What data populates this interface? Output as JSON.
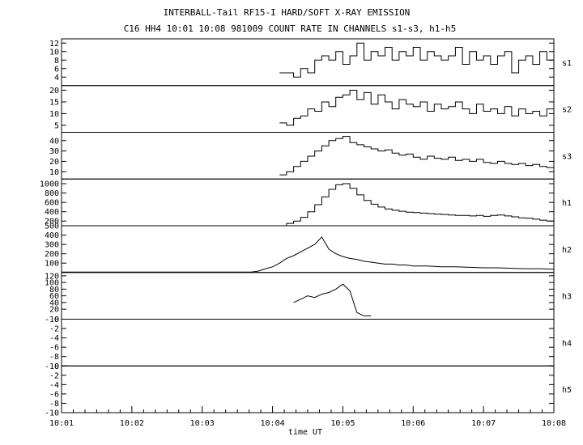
{
  "chart_data": {
    "type": "line",
    "title": "INTERBALL-Tail RF15-I HARD/SOFT X-RAY EMISSION",
    "subtitle": "C16 HH4 10:01 10:08 981009  COUNT RATE IN CHANNELS s1-s3, h1-h5",
    "xlabel": "time UT",
    "x_ticks": [
      "10:01",
      "10:02",
      "10:03",
      "10:04",
      "10:05",
      "10:06",
      "10:07",
      "10:08"
    ],
    "xlim": [
      0,
      7
    ],
    "x_unit_note": "minutes after 10:01 UT",
    "grid": false,
    "panels": [
      {
        "name": "s1",
        "ylim": [
          2,
          13
        ],
        "yticks": [
          4,
          6,
          8,
          10,
          12
        ],
        "series": {
          "type": "step",
          "x": [
            3.1,
            3.2,
            3.3,
            3.4,
            3.5,
            3.6,
            3.7,
            3.8,
            3.9,
            4.0,
            4.1,
            4.2,
            4.3,
            4.4,
            4.5,
            4.6,
            4.7,
            4.8,
            4.9,
            5.0,
            5.1,
            5.2,
            5.3,
            5.4,
            5.5,
            5.6,
            5.7,
            5.8,
            5.9,
            6.0,
            6.1,
            6.2,
            6.3,
            6.4,
            6.5,
            6.6,
            6.7,
            6.8,
            6.9,
            7.0
          ],
          "y": [
            5,
            5,
            4,
            6,
            5,
            8,
            9,
            8,
            10,
            7,
            9,
            12,
            8,
            10,
            9,
            11,
            8,
            10,
            9,
            11,
            8,
            10,
            9,
            8,
            9,
            11,
            7,
            10,
            8,
            9,
            7,
            9,
            10,
            5,
            8,
            9,
            7,
            10,
            8,
            5
          ]
        }
      },
      {
        "name": "s2",
        "ylim": [
          2,
          22
        ],
        "yticks": [
          5,
          10,
          15,
          20
        ],
        "series": {
          "type": "step",
          "x": [
            3.1,
            3.2,
            3.3,
            3.4,
            3.5,
            3.6,
            3.7,
            3.8,
            3.9,
            4.0,
            4.1,
            4.2,
            4.3,
            4.4,
            4.5,
            4.6,
            4.7,
            4.8,
            4.9,
            5.0,
            5.1,
            5.2,
            5.3,
            5.4,
            5.5,
            5.6,
            5.7,
            5.8,
            5.9,
            6.0,
            6.1,
            6.2,
            6.3,
            6.4,
            6.5,
            6.6,
            6.7,
            6.8,
            6.9,
            7.0
          ],
          "y": [
            6,
            5,
            8,
            9,
            12,
            11,
            15,
            13,
            17,
            18,
            20,
            16,
            19,
            14,
            18,
            15,
            12,
            16,
            14,
            13,
            15,
            11,
            14,
            12,
            13,
            15,
            12,
            10,
            14,
            11,
            12,
            10,
            13,
            9,
            12,
            10,
            11,
            9,
            12,
            8
          ]
        }
      },
      {
        "name": "s3",
        "ylim": [
          3,
          48
        ],
        "yticks": [
          10,
          20,
          30,
          40
        ],
        "series": {
          "type": "step",
          "x": [
            3.1,
            3.2,
            3.3,
            3.4,
            3.5,
            3.6,
            3.7,
            3.8,
            3.9,
            4.0,
            4.1,
            4.2,
            4.3,
            4.4,
            4.5,
            4.6,
            4.7,
            4.8,
            4.9,
            5.0,
            5.1,
            5.2,
            5.3,
            5.4,
            5.5,
            5.6,
            5.7,
            5.8,
            5.9,
            6.0,
            6.1,
            6.2,
            6.3,
            6.4,
            6.5,
            6.6,
            6.7,
            6.8,
            6.9,
            7.0
          ],
          "y": [
            7,
            10,
            15,
            20,
            25,
            30,
            35,
            40,
            42,
            44,
            38,
            36,
            34,
            32,
            30,
            31,
            28,
            26,
            27,
            24,
            22,
            25,
            23,
            22,
            24,
            21,
            22,
            20,
            22,
            19,
            18,
            20,
            18,
            17,
            18,
            16,
            17,
            15,
            14,
            13
          ]
        }
      },
      {
        "name": "h1",
        "ylim": [
          100,
          1100
        ],
        "yticks": [
          200,
          400,
          600,
          800,
          1000
        ],
        "series": {
          "type": "step",
          "x": [
            3.1,
            3.2,
            3.3,
            3.4,
            3.5,
            3.6,
            3.7,
            3.8,
            3.9,
            4.0,
            4.1,
            4.2,
            4.3,
            4.4,
            4.5,
            4.6,
            4.7,
            4.8,
            4.9,
            5.0,
            5.1,
            5.2,
            5.3,
            5.4,
            5.5,
            5.6,
            5.7,
            5.8,
            5.9,
            6.0,
            6.1,
            6.2,
            6.3,
            6.4,
            6.5,
            6.6,
            6.7,
            6.8,
            6.9,
            7.0
          ],
          "y": [
            100,
            150,
            200,
            280,
            400,
            550,
            720,
            880,
            980,
            1000,
            900,
            760,
            640,
            560,
            500,
            460,
            430,
            410,
            390,
            380,
            370,
            360,
            350,
            340,
            330,
            320,
            320,
            310,
            320,
            300,
            320,
            330,
            310,
            290,
            270,
            260,
            240,
            220,
            200,
            150
          ]
        }
      },
      {
        "name": "h2",
        "ylim": [
          0,
          500
        ],
        "yticks": [
          100,
          200,
          300,
          400,
          500
        ],
        "series": {
          "type": "line",
          "x": [
            0,
            2.7,
            2.8,
            2.9,
            3.0,
            3.1,
            3.2,
            3.3,
            3.4,
            3.5,
            3.6,
            3.7,
            3.8,
            3.9,
            4.0,
            4.1,
            4.2,
            4.3,
            4.4,
            4.5,
            4.6,
            4.7,
            4.8,
            4.9,
            5.0,
            5.2,
            5.4,
            5.6,
            5.8,
            6.0,
            6.2,
            6.4,
            6.6,
            6.8,
            7.0
          ],
          "y": [
            5,
            5,
            15,
            40,
            60,
            100,
            150,
            180,
            220,
            260,
            300,
            380,
            250,
            200,
            170,
            150,
            140,
            120,
            110,
            100,
            90,
            90,
            80,
            80,
            70,
            70,
            60,
            60,
            55,
            50,
            50,
            45,
            40,
            40,
            35
          ]
        }
      },
      {
        "name": "h3",
        "ylim": [
          -10,
          130
        ],
        "yticks": [
          -10,
          20,
          40,
          60,
          80,
          100,
          120
        ],
        "series": {
          "type": "line",
          "x": [
            3.3,
            3.4,
            3.5,
            3.6,
            3.7,
            3.8,
            3.9,
            4.0,
            4.1,
            4.2,
            4.3,
            4.4
          ],
          "y": [
            40,
            50,
            60,
            55,
            65,
            70,
            80,
            95,
            75,
            10,
            0,
            0
          ]
        }
      },
      {
        "name": "h4",
        "ylim": [
          -10,
          0
        ],
        "yticks": [
          -10,
          -8,
          -6,
          -4,
          -2,
          0
        ],
        "series": {
          "type": "line",
          "x": [],
          "y": []
        }
      },
      {
        "name": "h5",
        "ylim": [
          -10,
          0
        ],
        "yticks": [
          -10,
          -8,
          -6,
          -4,
          -2,
          0
        ],
        "series": {
          "type": "line",
          "x": [],
          "y": []
        }
      }
    ]
  }
}
